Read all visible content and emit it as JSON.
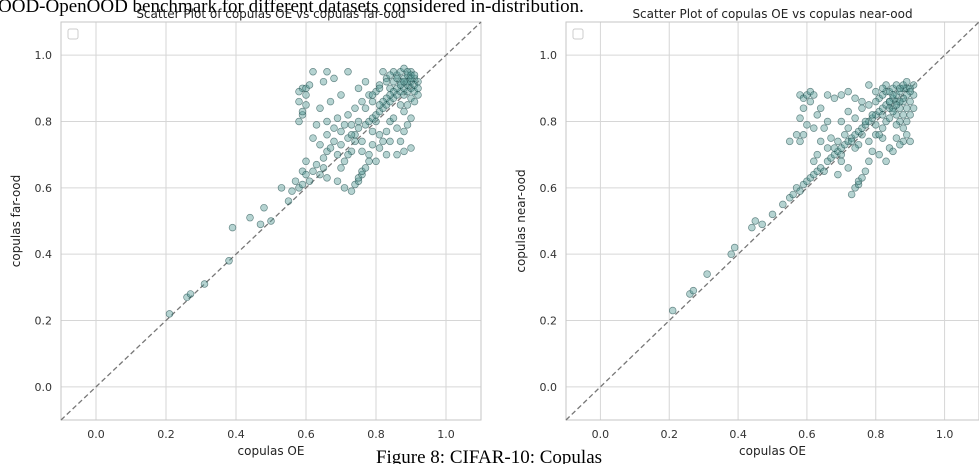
{
  "header_text": "OOD-OpenOOD benchmark for different datasets considered in-distribution.",
  "figure_caption": "Figure 8: CIFAR-10: Copulas",
  "colors": {
    "point_fill": "#5c9e9a",
    "point_edge": "#0b3a3a",
    "diagonal": "#777777",
    "grid": "#d6d6d6",
    "axes": "#c6c6c6"
  },
  "chart_data": [
    {
      "type": "scatter",
      "title": "Scatter Plot of copulas OE vs copulas far-ood",
      "xlabel": "copulas OE",
      "ylabel": "copulas far-ood",
      "xlim": [
        -0.1,
        1.1
      ],
      "ylim": [
        -0.1,
        1.1
      ],
      "xticks": [
        "0.0",
        "0.2",
        "0.4",
        "0.6",
        "0.8",
        "1.0"
      ],
      "yticks": [
        "0.0",
        "0.2",
        "0.4",
        "0.6",
        "0.8",
        "1.0"
      ],
      "grid": true,
      "reference_line": "y = x",
      "legend": "top-left, empty",
      "points": [
        [
          0.21,
          0.22
        ],
        [
          0.26,
          0.27
        ],
        [
          0.27,
          0.28
        ],
        [
          0.31,
          0.31
        ],
        [
          0.38,
          0.38
        ],
        [
          0.39,
          0.48
        ],
        [
          0.44,
          0.51
        ],
        [
          0.47,
          0.49
        ],
        [
          0.48,
          0.54
        ],
        [
          0.5,
          0.5
        ],
        [
          0.53,
          0.6
        ],
        [
          0.55,
          0.56
        ],
        [
          0.56,
          0.59
        ],
        [
          0.57,
          0.62
        ],
        [
          0.58,
          0.6
        ],
        [
          0.59,
          0.61
        ],
        [
          0.59,
          0.65
        ],
        [
          0.6,
          0.64
        ],
        [
          0.6,
          0.68
        ],
        [
          0.61,
          0.62
        ],
        [
          0.62,
          0.65
        ],
        [
          0.63,
          0.67
        ],
        [
          0.64,
          0.64
        ],
        [
          0.65,
          0.66
        ],
        [
          0.65,
          0.69
        ],
        [
          0.66,
          0.71
        ],
        [
          0.67,
          0.72
        ],
        [
          0.68,
          0.74
        ],
        [
          0.69,
          0.7
        ],
        [
          0.7,
          0.73
        ],
        [
          0.71,
          0.68
        ],
        [
          0.72,
          0.75
        ],
        [
          0.73,
          0.71
        ],
        [
          0.74,
          0.76
        ],
        [
          0.75,
          0.78
        ],
        [
          0.76,
          0.74
        ],
        [
          0.77,
          0.79
        ],
        [
          0.78,
          0.8
        ],
        [
          0.79,
          0.81
        ],
        [
          0.8,
          0.82
        ],
        [
          0.81,
          0.83
        ],
        [
          0.82,
          0.84
        ],
        [
          0.83,
          0.85
        ],
        [
          0.84,
          0.86
        ],
        [
          0.85,
          0.87
        ],
        [
          0.86,
          0.88
        ],
        [
          0.87,
          0.89
        ],
        [
          0.88,
          0.9
        ],
        [
          0.89,
          0.91
        ],
        [
          0.9,
          0.92
        ],
        [
          0.74,
          0.61
        ],
        [
          0.75,
          0.62
        ],
        [
          0.75,
          0.63
        ],
        [
          0.76,
          0.64
        ],
        [
          0.76,
          0.65
        ],
        [
          0.77,
          0.66
        ],
        [
          0.78,
          0.68
        ],
        [
          0.73,
          0.59
        ],
        [
          0.71,
          0.6
        ],
        [
          0.66,
          0.63
        ],
        [
          0.59,
          0.9
        ],
        [
          0.6,
          0.88
        ],
        [
          0.58,
          0.89
        ],
        [
          0.59,
          0.82
        ],
        [
          0.58,
          0.8
        ],
        [
          0.6,
          0.9
        ],
        [
          0.61,
          0.91
        ],
        [
          0.6,
          0.85
        ],
        [
          0.58,
          0.86
        ],
        [
          0.59,
          0.83
        ],
        [
          0.62,
          0.95
        ],
        [
          0.66,
          0.95
        ],
        [
          0.72,
          0.95
        ],
        [
          0.68,
          0.93
        ],
        [
          0.65,
          0.92
        ],
        [
          0.7,
          0.88
        ],
        [
          0.67,
          0.86
        ],
        [
          0.64,
          0.84
        ],
        [
          0.63,
          0.79
        ],
        [
          0.66,
          0.76
        ],
        [
          0.68,
          0.78
        ],
        [
          0.7,
          0.77
        ],
        [
          0.73,
          0.79
        ],
        [
          0.72,
          0.82
        ],
        [
          0.74,
          0.84
        ],
        [
          0.76,
          0.86
        ],
        [
          0.75,
          0.9
        ],
        [
          0.77,
          0.92
        ],
        [
          0.78,
          0.88
        ],
        [
          0.79,
          0.86
        ],
        [
          0.8,
          0.89
        ],
        [
          0.81,
          0.91
        ],
        [
          0.82,
          0.95
        ],
        [
          0.83,
          0.93
        ],
        [
          0.84,
          0.9
        ],
        [
          0.85,
          0.92
        ],
        [
          0.86,
          0.94
        ],
        [
          0.87,
          0.95
        ],
        [
          0.88,
          0.93
        ],
        [
          0.89,
          0.94
        ],
        [
          0.9,
          0.95
        ],
        [
          0.91,
          0.93
        ],
        [
          0.88,
          0.96
        ],
        [
          0.89,
          0.95
        ],
        [
          0.9,
          0.94
        ],
        [
          0.87,
          0.92
        ],
        [
          0.86,
          0.9
        ],
        [
          0.85,
          0.89
        ],
        [
          0.84,
          0.88
        ],
        [
          0.83,
          0.87
        ],
        [
          0.82,
          0.86
        ],
        [
          0.81,
          0.85
        ],
        [
          0.8,
          0.8
        ],
        [
          0.79,
          0.77
        ],
        [
          0.81,
          0.76
        ],
        [
          0.82,
          0.74
        ],
        [
          0.83,
          0.77
        ],
        [
          0.84,
          0.8
        ],
        [
          0.86,
          0.78
        ],
        [
          0.87,
          0.74
        ],
        [
          0.88,
          0.77
        ],
        [
          0.89,
          0.79
        ],
        [
          0.9,
          0.81
        ],
        [
          0.88,
          0.83
        ],
        [
          0.87,
          0.85
        ],
        [
          0.85,
          0.81
        ],
        [
          0.84,
          0.74
        ],
        [
          0.86,
          0.7
        ],
        [
          0.88,
          0.71
        ],
        [
          0.9,
          0.72
        ],
        [
          0.78,
          0.7
        ],
        [
          0.76,
          0.71
        ],
        [
          0.79,
          0.73
        ],
        [
          0.81,
          0.72
        ],
        [
          0.83,
          0.7
        ],
        [
          0.8,
          0.68
        ],
        [
          0.74,
          0.74
        ],
        [
          0.72,
          0.7
        ],
        [
          0.7,
          0.66
        ],
        [
          0.69,
          0.62
        ],
        [
          0.62,
          0.75
        ],
        [
          0.64,
          0.73
        ],
        [
          0.66,
          0.8
        ],
        [
          0.69,
          0.81
        ],
        [
          0.71,
          0.79
        ],
        [
          0.73,
          0.76
        ],
        [
          0.75,
          0.8
        ],
        [
          0.77,
          0.84
        ],
        [
          0.79,
          0.88
        ],
        [
          0.81,
          0.9
        ],
        [
          0.88,
          0.88
        ],
        [
          0.89,
          0.89
        ],
        [
          0.9,
          0.9
        ],
        [
          0.91,
          0.91
        ],
        [
          0.92,
          0.92
        ],
        [
          0.89,
          0.92
        ],
        [
          0.9,
          0.93
        ],
        [
          0.91,
          0.94
        ],
        [
          0.87,
          0.91
        ],
        [
          0.88,
          0.92
        ],
        [
          0.91,
          0.89
        ],
        [
          0.9,
          0.87
        ],
        [
          0.89,
          0.85
        ],
        [
          0.91,
          0.86
        ],
        [
          0.92,
          0.88
        ],
        [
          0.92,
          0.9
        ],
        [
          0.86,
          0.93
        ],
        [
          0.85,
          0.95
        ],
        [
          0.84,
          0.94
        ],
        [
          0.83,
          0.92
        ]
      ]
    },
    {
      "type": "scatter",
      "title": "Scatter Plot of copulas OE vs copulas near-ood",
      "xlabel": "copulas OE",
      "ylabel": "copulas near-ood",
      "xlim": [
        -0.1,
        1.1
      ],
      "ylim": [
        -0.1,
        1.1
      ],
      "xticks": [
        "0.0",
        "0.2",
        "0.4",
        "0.6",
        "0.8",
        "1.0"
      ],
      "yticks": [
        "0.0",
        "0.2",
        "0.4",
        "0.6",
        "0.8",
        "1.0"
      ],
      "grid": true,
      "reference_line": "y = x",
      "legend": "top-left, empty",
      "points": [
        [
          0.21,
          0.23
        ],
        [
          0.26,
          0.28
        ],
        [
          0.27,
          0.29
        ],
        [
          0.31,
          0.34
        ],
        [
          0.38,
          0.4
        ],
        [
          0.39,
          0.42
        ],
        [
          0.44,
          0.48
        ],
        [
          0.45,
          0.5
        ],
        [
          0.47,
          0.49
        ],
        [
          0.5,
          0.52
        ],
        [
          0.53,
          0.55
        ],
        [
          0.55,
          0.57
        ],
        [
          0.56,
          0.58
        ],
        [
          0.57,
          0.6
        ],
        [
          0.58,
          0.59
        ],
        [
          0.59,
          0.61
        ],
        [
          0.6,
          0.62
        ],
        [
          0.61,
          0.63
        ],
        [
          0.62,
          0.64
        ],
        [
          0.63,
          0.65
        ],
        [
          0.64,
          0.66
        ],
        [
          0.65,
          0.65
        ],
        [
          0.66,
          0.68
        ],
        [
          0.67,
          0.69
        ],
        [
          0.68,
          0.7
        ],
        [
          0.69,
          0.71
        ],
        [
          0.7,
          0.72
        ],
        [
          0.71,
          0.73
        ],
        [
          0.72,
          0.74
        ],
        [
          0.73,
          0.75
        ],
        [
          0.74,
          0.76
        ],
        [
          0.75,
          0.77
        ],
        [
          0.76,
          0.78
        ],
        [
          0.77,
          0.79
        ],
        [
          0.78,
          0.8
        ],
        [
          0.79,
          0.81
        ],
        [
          0.8,
          0.82
        ],
        [
          0.81,
          0.83
        ],
        [
          0.82,
          0.84
        ],
        [
          0.83,
          0.85
        ],
        [
          0.84,
          0.86
        ],
        [
          0.85,
          0.87
        ],
        [
          0.86,
          0.88
        ],
        [
          0.87,
          0.89
        ],
        [
          0.88,
          0.9
        ],
        [
          0.89,
          0.9
        ],
        [
          0.9,
          0.9
        ],
        [
          0.91,
          0.91
        ],
        [
          0.66,
          0.72
        ],
        [
          0.7,
          0.7
        ],
        [
          0.74,
          0.6
        ],
        [
          0.75,
          0.61
        ],
        [
          0.75,
          0.62
        ],
        [
          0.76,
          0.63
        ],
        [
          0.73,
          0.58
        ],
        [
          0.77,
          0.65
        ],
        [
          0.78,
          0.68
        ],
        [
          0.72,
          0.66
        ],
        [
          0.7,
          0.68
        ],
        [
          0.69,
          0.64
        ],
        [
          0.58,
          0.88
        ],
        [
          0.59,
          0.87
        ],
        [
          0.6,
          0.88
        ],
        [
          0.61,
          0.86
        ],
        [
          0.59,
          0.84
        ],
        [
          0.58,
          0.81
        ],
        [
          0.6,
          0.79
        ],
        [
          0.59,
          0.76
        ],
        [
          0.61,
          0.89
        ],
        [
          0.62,
          0.88
        ],
        [
          0.63,
          0.82
        ],
        [
          0.62,
          0.78
        ],
        [
          0.64,
          0.84
        ],
        [
          0.66,
          0.88
        ],
        [
          0.68,
          0.87
        ],
        [
          0.7,
          0.88
        ],
        [
          0.72,
          0.89
        ],
        [
          0.74,
          0.87
        ],
        [
          0.76,
          0.86
        ],
        [
          0.78,
          0.91
        ],
        [
          0.8,
          0.89
        ],
        [
          0.81,
          0.87
        ],
        [
          0.82,
          0.88
        ],
        [
          0.83,
          0.89
        ],
        [
          0.84,
          0.86
        ],
        [
          0.85,
          0.84
        ],
        [
          0.86,
          0.82
        ],
        [
          0.87,
          0.8
        ],
        [
          0.88,
          0.78
        ],
        [
          0.89,
          0.76
        ],
        [
          0.9,
          0.74
        ],
        [
          0.88,
          0.74
        ],
        [
          0.86,
          0.75
        ],
        [
          0.84,
          0.72
        ],
        [
          0.82,
          0.75
        ],
        [
          0.8,
          0.76
        ],
        [
          0.78,
          0.74
        ],
        [
          0.79,
          0.71
        ],
        [
          0.81,
          0.7
        ],
        [
          0.83,
          0.68
        ],
        [
          0.85,
          0.71
        ],
        [
          0.87,
          0.73
        ],
        [
          0.89,
          0.8
        ],
        [
          0.9,
          0.82
        ],
        [
          0.91,
          0.84
        ],
        [
          0.88,
          0.86
        ],
        [
          0.87,
          0.84
        ],
        [
          0.86,
          0.86
        ],
        [
          0.85,
          0.88
        ],
        [
          0.84,
          0.89
        ],
        [
          0.83,
          0.8
        ],
        [
          0.82,
          0.78
        ],
        [
          0.81,
          0.76
        ],
        [
          0.8,
          0.79
        ],
        [
          0.79,
          0.82
        ],
        [
          0.77,
          0.8
        ],
        [
          0.76,
          0.76
        ],
        [
          0.75,
          0.73
        ],
        [
          0.74,
          0.72
        ],
        [
          0.73,
          0.74
        ],
        [
          0.72,
          0.78
        ],
        [
          0.71,
          0.76
        ],
        [
          0.69,
          0.74
        ],
        [
          0.68,
          0.72
        ],
        [
          0.67,
          0.75
        ],
        [
          0.65,
          0.78
        ],
        [
          0.64,
          0.74
        ],
        [
          0.63,
          0.7
        ],
        [
          0.62,
          0.68
        ],
        [
          0.66,
          0.8
        ],
        [
          0.7,
          0.8
        ],
        [
          0.72,
          0.83
        ],
        [
          0.74,
          0.81
        ],
        [
          0.76,
          0.84
        ],
        [
          0.78,
          0.85
        ],
        [
          0.8,
          0.86
        ],
        [
          0.82,
          0.82
        ],
        [
          0.84,
          0.81
        ],
        [
          0.86,
          0.79
        ],
        [
          0.88,
          0.82
        ],
        [
          0.89,
          0.84
        ],
        [
          0.9,
          0.86
        ],
        [
          0.91,
          0.88
        ],
        [
          0.9,
          0.89
        ],
        [
          0.89,
          0.88
        ],
        [
          0.88,
          0.87
        ],
        [
          0.87,
          0.86
        ],
        [
          0.86,
          0.85
        ],
        [
          0.85,
          0.83
        ],
        [
          0.84,
          0.84
        ],
        [
          0.57,
          0.76
        ],
        [
          0.58,
          0.74
        ],
        [
          0.55,
          0.74
        ],
        [
          0.85,
          0.9
        ],
        [
          0.86,
          0.91
        ],
        [
          0.87,
          0.9
        ],
        [
          0.88,
          0.91
        ],
        [
          0.89,
          0.92
        ],
        [
          0.83,
          0.91
        ],
        [
          0.82,
          0.9
        ]
      ]
    }
  ]
}
